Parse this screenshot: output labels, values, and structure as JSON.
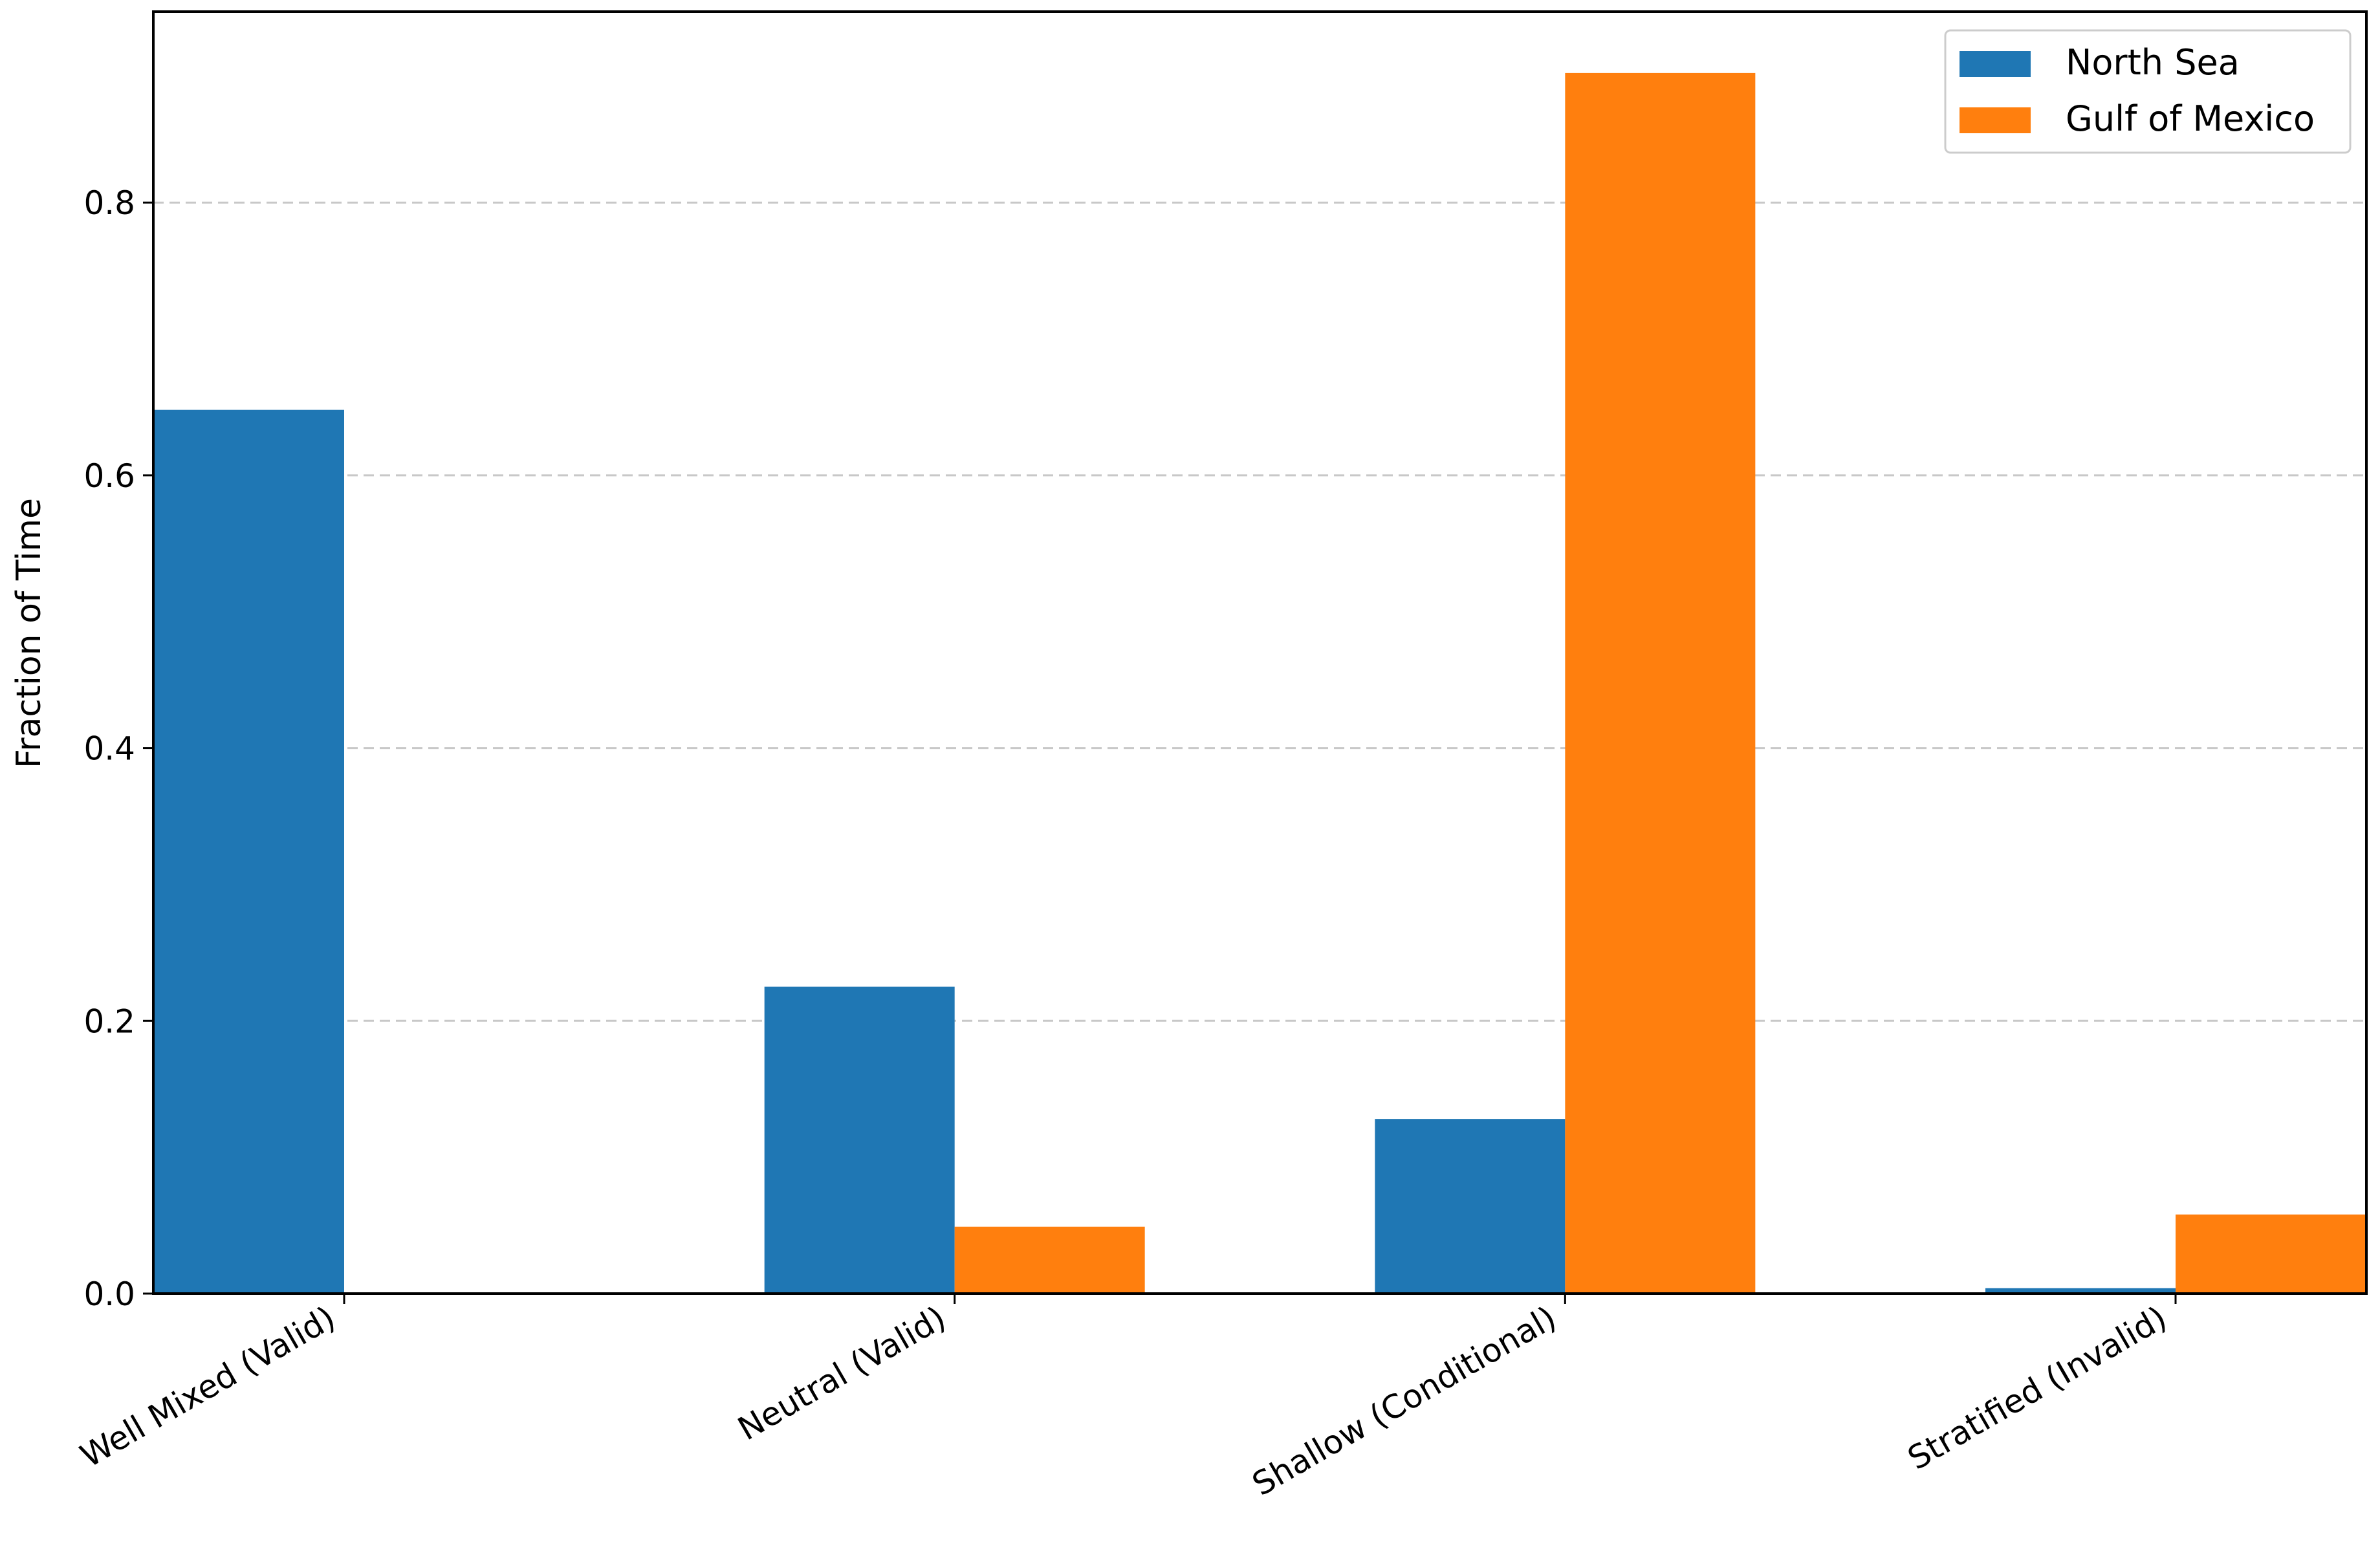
{
  "chart_data": {
    "type": "bar",
    "title": "",
    "xlabel": "",
    "ylabel": "Fraction of Time",
    "categories": [
      "Well Mixed (Valid)",
      "Neutral (Valid)",
      "Shallow (Conditional)",
      "Stratified (Invalid)"
    ],
    "series": [
      {
        "name": "North Sea",
        "color": "#1f77b4",
        "values": [
          0.648,
          0.225,
          0.128,
          0.004
        ]
      },
      {
        "name": "Gulf of Mexico",
        "color": "#ff7f0e",
        "values": [
          0.0,
          0.049,
          0.895,
          0.058
        ]
      }
    ],
    "ylim": [
      0,
      0.94
    ],
    "yticks": [
      0.0,
      0.2,
      0.4,
      0.6,
      0.8
    ],
    "ytick_labels": [
      "0.0",
      "0.2",
      "0.4",
      "0.6",
      "0.8"
    ],
    "grid": {
      "y": true,
      "style": "dashed"
    },
    "legend_position": "top-right"
  }
}
